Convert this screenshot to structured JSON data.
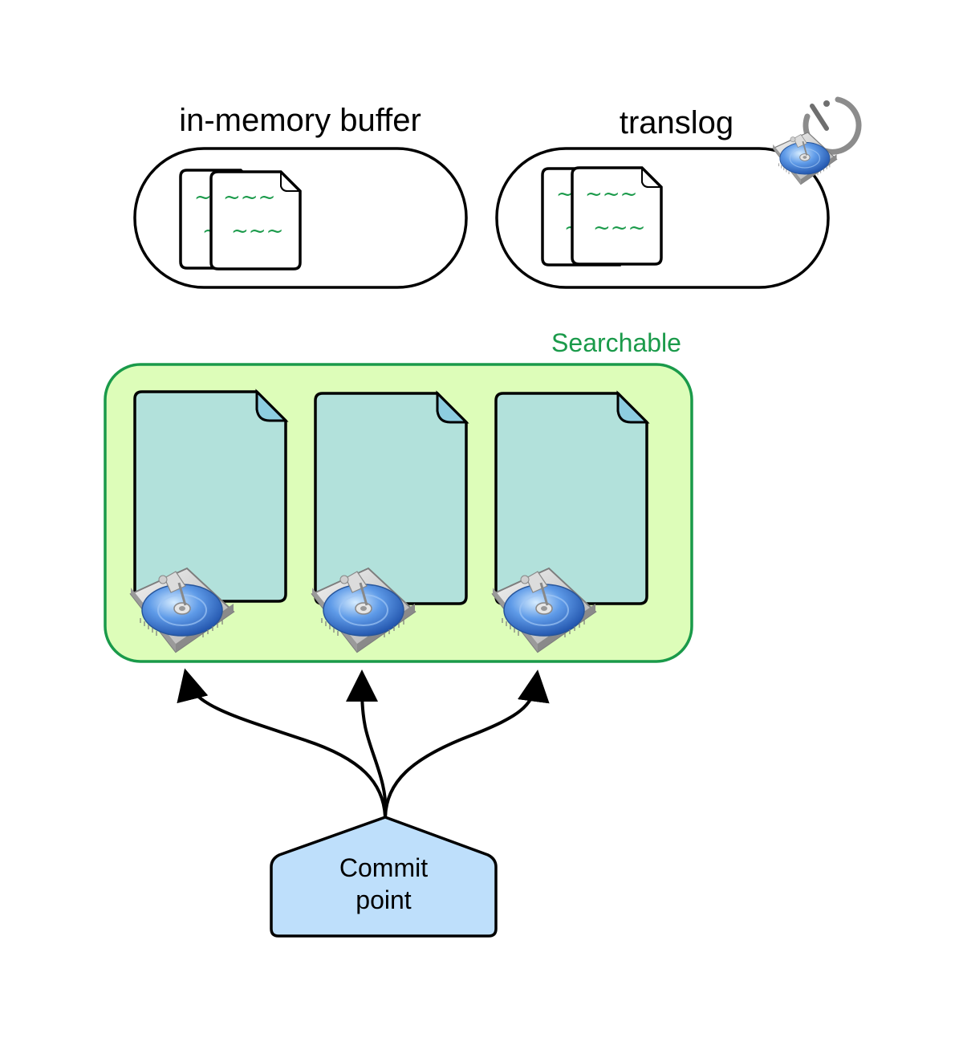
{
  "labels": {
    "buffer": "in-memory buffer",
    "translog": "translog",
    "searchable": "Searchable",
    "commit_line1": "Commit",
    "commit_line2": "point"
  },
  "doc_text": {
    "tilde_short": "~",
    "tilde_long": "~~~"
  },
  "colors": {
    "searchable_border": "#1a9a4a",
    "searchable_fill": "#ddfdb9",
    "segment_fill": "#b2e1db",
    "segment_fold": "#8dcde0",
    "commit_fill": "#bedffb",
    "tilde_text": "#1a9a4a",
    "stroke": "#000000"
  },
  "icons": {
    "disk": "hard-drive-icon",
    "timer": "timer-icon"
  }
}
